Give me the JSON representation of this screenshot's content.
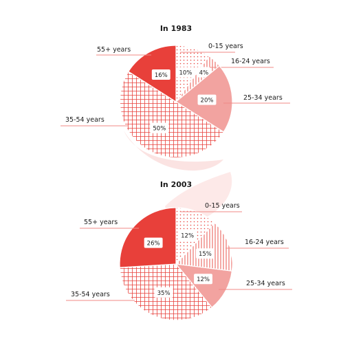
{
  "chart_data": [
    {
      "type": "pie",
      "title": "In 1983",
      "categories": [
        "0-15 years",
        "16-24 years",
        "25-34 years",
        "35-54 years",
        "55+ years"
      ],
      "values": [
        10,
        4,
        20,
        50,
        16
      ],
      "value_labels": [
        "10%",
        "4%",
        "20%",
        "50%",
        "16%"
      ],
      "unit": "%"
    },
    {
      "type": "pie",
      "title": "In 2003",
      "categories": [
        "0-15 years",
        "16-24 years",
        "25-34 years",
        "35-54 years",
        "55+ years"
      ],
      "values": [
        12,
        15,
        12,
        35,
        26
      ],
      "value_labels": [
        "12%",
        "15%",
        "12%",
        "35%",
        "26%"
      ],
      "unit": "%"
    }
  ],
  "colors": {
    "accent_red": "#e8403a",
    "light_red": "#f2a3a0",
    "pattern_red": "#e8403a",
    "label_rule": "#f08a86",
    "text": "#1a1a1a",
    "bg_shape": "#fbe3e2"
  }
}
